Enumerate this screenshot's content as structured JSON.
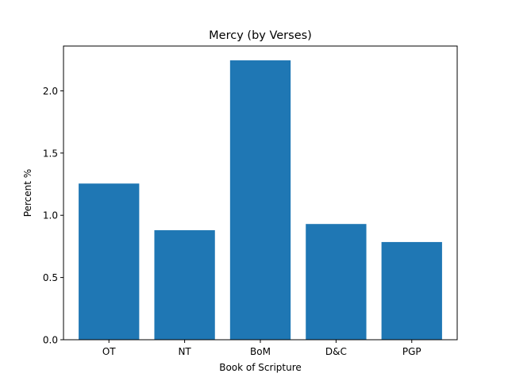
{
  "chart_data": {
    "type": "bar",
    "title": "Mercy (by Verses)",
    "xlabel": "Book of Scripture",
    "ylabel": "Percent %",
    "categories": [
      "OT",
      "NT",
      "BoM",
      "D&C",
      "PGP"
    ],
    "values": [
      1.255,
      0.88,
      2.245,
      0.93,
      0.785
    ],
    "ylim": [
      0,
      2.36
    ],
    "yticks": [
      "0.0",
      "0.5",
      "1.0",
      "1.5",
      "2.0"
    ],
    "grid": false,
    "bar_color": "#1f77b4"
  }
}
